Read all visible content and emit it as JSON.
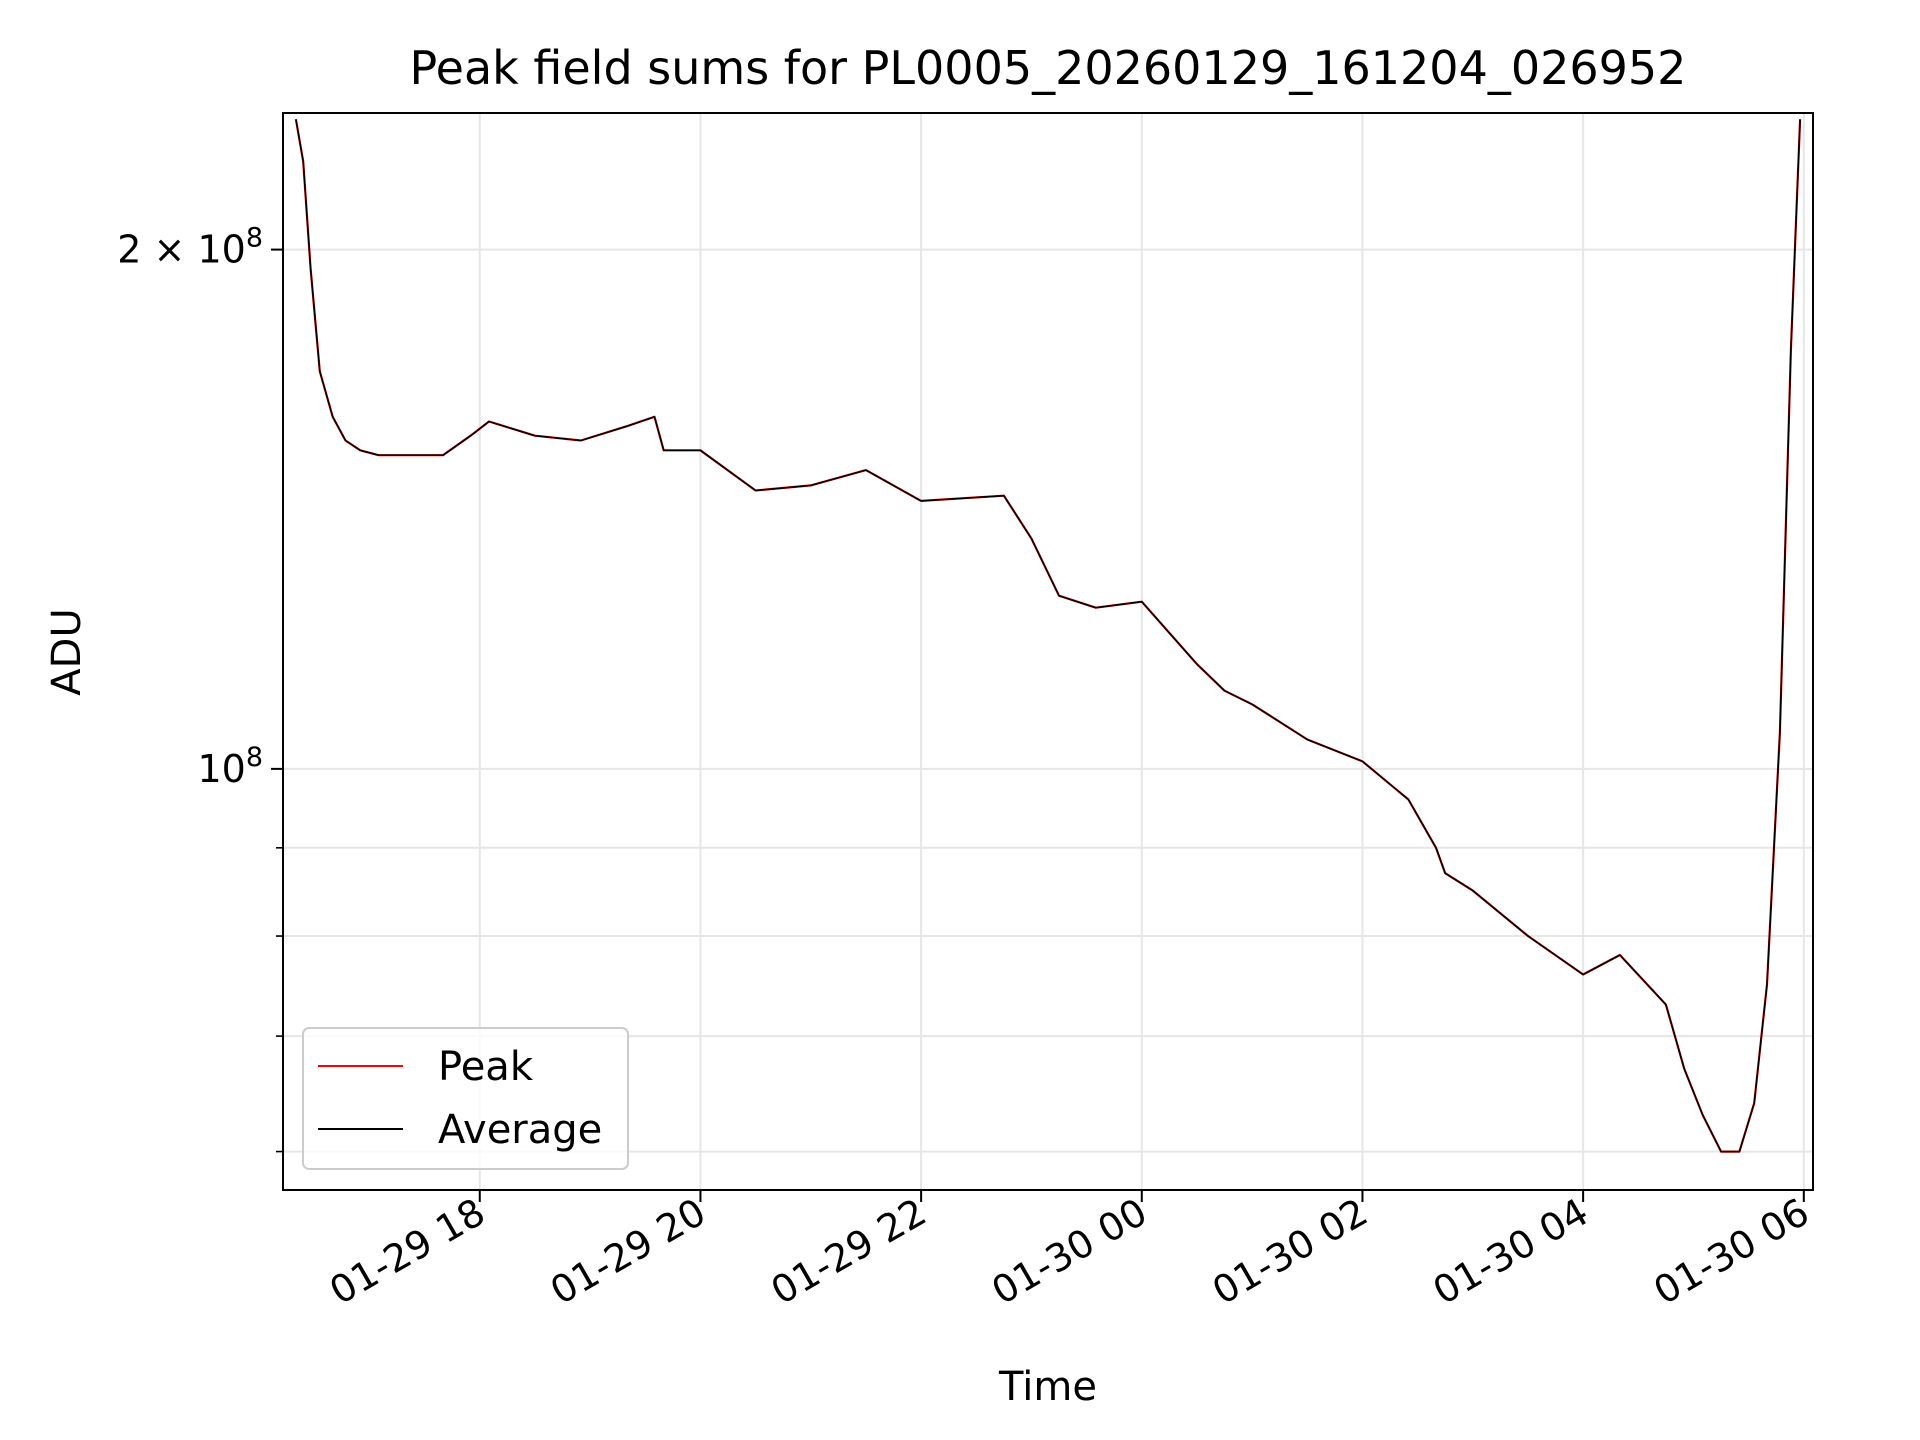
{
  "chart_data": {
    "type": "line",
    "title": "Peak field sums for PL0005_20260129_161204_026952",
    "xlabel": "Time",
    "ylabel": "ADU",
    "y_scale": "log",
    "ylim": [
      57000000,
      240000000
    ],
    "xlim": [
      "2026-01-29 16:13",
      "2026-01-30 06:05"
    ],
    "x_ticks": [
      "01-29 18",
      "01-29 20",
      "01-29 22",
      "01-30 00",
      "01-30 02",
      "01-30 04",
      "01-30 06"
    ],
    "y_ticks": [
      {
        "value": 100000000,
        "base": "10",
        "exp": "8",
        "mult": ""
      },
      {
        "value": 200000000,
        "base": "10",
        "exp": "8",
        "mult": "2 × "
      }
    ],
    "grid": true,
    "legend_position": "lower-left",
    "colors": {
      "Peak": "#ff0000",
      "Average": "#000000"
    },
    "x": [
      "2026-01-29 16:20",
      "2026-01-29 16:24",
      "2026-01-29 16:28",
      "2026-01-29 16:33",
      "2026-01-29 16:40",
      "2026-01-29 16:47",
      "2026-01-29 16:55",
      "2026-01-29 17:05",
      "2026-01-29 17:20",
      "2026-01-29 17:40",
      "2026-01-29 17:55",
      "2026-01-29 18:05",
      "2026-01-29 18:30",
      "2026-01-29 18:55",
      "2026-01-29 19:20",
      "2026-01-29 19:35",
      "2026-01-29 19:40",
      "2026-01-29 20:00",
      "2026-01-29 20:30",
      "2026-01-29 21:00",
      "2026-01-29 21:30",
      "2026-01-29 22:00",
      "2026-01-29 22:45",
      "2026-01-29 23:00",
      "2026-01-29 23:15",
      "2026-01-29 23:35",
      "2026-01-30 00:00",
      "2026-01-30 00:30",
      "2026-01-30 00:45",
      "2026-01-30 01:00",
      "2026-01-30 01:30",
      "2026-01-30 02:00",
      "2026-01-30 02:25",
      "2026-01-30 02:40",
      "2026-01-30 02:45",
      "2026-01-30 03:00",
      "2026-01-30 03:30",
      "2026-01-30 04:00",
      "2026-01-30 04:20",
      "2026-01-30 04:45",
      "2026-01-30 04:55",
      "2026-01-30 05:05",
      "2026-01-30 05:15",
      "2026-01-30 05:25",
      "2026-01-30 05:33",
      "2026-01-30 05:40",
      "2026-01-30 05:47",
      "2026-01-30 05:53",
      "2026-01-30 05:58"
    ],
    "series": [
      {
        "name": "Peak",
        "values": [
          238000000,
          225000000,
          195000000,
          170000000,
          160000000,
          155000000,
          153000000,
          152000000,
          152000000,
          152000000,
          156000000,
          159000000,
          156000000,
          155000000,
          158000000,
          160000000,
          153000000,
          153000000,
          145000000,
          146000000,
          149000000,
          143000000,
          144000000,
          136000000,
          126000000,
          124000000,
          125000000,
          115000000,
          111000000,
          109000000,
          104000000,
          101000000,
          96000000,
          90000000,
          87000000,
          85000000,
          80000000,
          76000000,
          78000000,
          73000000,
          67000000,
          63000000,
          60000000,
          60000000,
          64000000,
          75000000,
          105000000,
          175000000,
          238000000
        ]
      },
      {
        "name": "Average",
        "values": [
          238000000,
          225000000,
          195000000,
          170000000,
          160000000,
          155000000,
          153000000,
          152000000,
          152000000,
          152000000,
          156000000,
          159000000,
          156000000,
          155000000,
          158000000,
          160000000,
          153000000,
          153000000,
          145000000,
          146000000,
          149000000,
          143000000,
          144000000,
          136000000,
          126000000,
          124000000,
          125000000,
          115000000,
          111000000,
          109000000,
          104000000,
          101000000,
          96000000,
          90000000,
          87000000,
          85000000,
          80000000,
          76000000,
          78000000,
          73000000,
          67000000,
          63000000,
          60000000,
          60000000,
          64000000,
          75000000,
          105000000,
          175000000,
          238000000
        ]
      }
    ]
  }
}
